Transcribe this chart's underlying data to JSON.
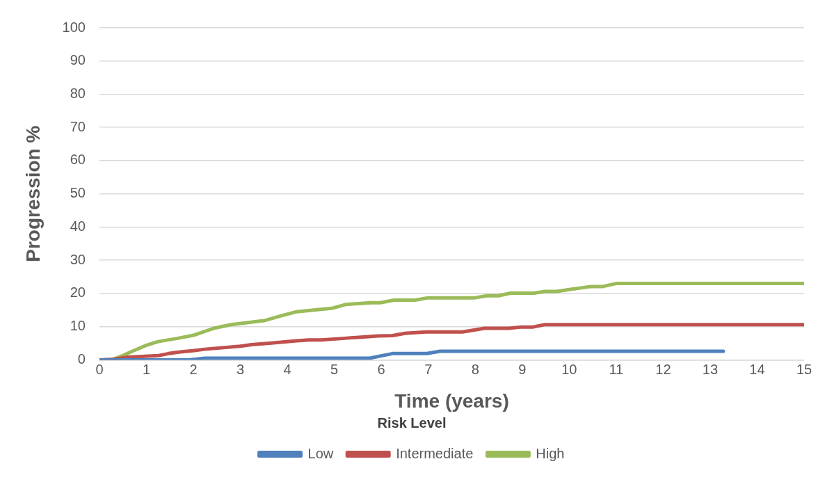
{
  "chart_data": {
    "type": "line",
    "xlabel": "Time (years)",
    "ylabel": "Progression %",
    "legend_title": "Risk Level",
    "legend": "bottom",
    "grid": "y",
    "marker": "none",
    "line_style": "solid",
    "xlim": [
      0,
      15
    ],
    "xticks": [
      0,
      1,
      2,
      3,
      4,
      5,
      6,
      7,
      8,
      9,
      10,
      11,
      12,
      13,
      14,
      15
    ],
    "ylim": [
      0,
      100
    ],
    "yticks": [
      0,
      10,
      20,
      30,
      40,
      50,
      60,
      70,
      80,
      90,
      100
    ],
    "series": [
      {
        "name": "Low",
        "color": "#4f81bd",
        "x": [
          0,
          1.9,
          2.24,
          5.75,
          6.24,
          6.97,
          7.25,
          13.28
        ],
        "values": [
          0,
          0,
          0.5,
          0.5,
          1.9,
          1.9,
          2.6,
          2.6
        ]
      },
      {
        "name": "Intermediate",
        "color": "#c0504d",
        "x": [
          0,
          0.3,
          0.6,
          1.26,
          1.47,
          1.72,
          2.02,
          2.24,
          3.0,
          3.24,
          3.7,
          4.15,
          4.46,
          4.72,
          5.22,
          5.52,
          5.93,
          6.24,
          6.5,
          6.95,
          7.73,
          8.2,
          8.72,
          8.98,
          9.23,
          9.48,
          15
        ],
        "values": [
          0,
          0.2,
          0.8,
          1.3,
          1.9,
          2.4,
          2.8,
          3.2,
          4.1,
          4.6,
          5.1,
          5.7,
          6,
          6,
          6.5,
          6.8,
          7.2,
          7.3,
          8,
          8.4,
          8.4,
          9.5,
          9.5,
          9.9,
          9.9,
          10.6,
          10.6
        ]
      },
      {
        "name": "High",
        "color": "#9bbb59",
        "x": [
          0,
          0.26,
          0.45,
          0.7,
          1.0,
          1.25,
          1.67,
          2.0,
          2.43,
          2.8,
          3.5,
          3.85,
          4.2,
          4.97,
          5.25,
          5.78,
          5.98,
          6.27,
          6.72,
          7.0,
          7.99,
          8.25,
          8.49,
          8.75,
          9.25,
          9.48,
          9.74,
          10.0,
          10.47,
          10.72,
          11.0,
          15
        ],
        "values": [
          0,
          0,
          1,
          2.6,
          4.4,
          5.5,
          6.5,
          7.4,
          9.5,
          10.6,
          11.8,
          13.2,
          14.5,
          15.6,
          16.7,
          17.2,
          17.2,
          18,
          18,
          18.7,
          18.7,
          19.3,
          19.3,
          20.1,
          20.1,
          20.6,
          20.6,
          21.2,
          22.1,
          22.1,
          23,
          23
        ]
      }
    ]
  }
}
